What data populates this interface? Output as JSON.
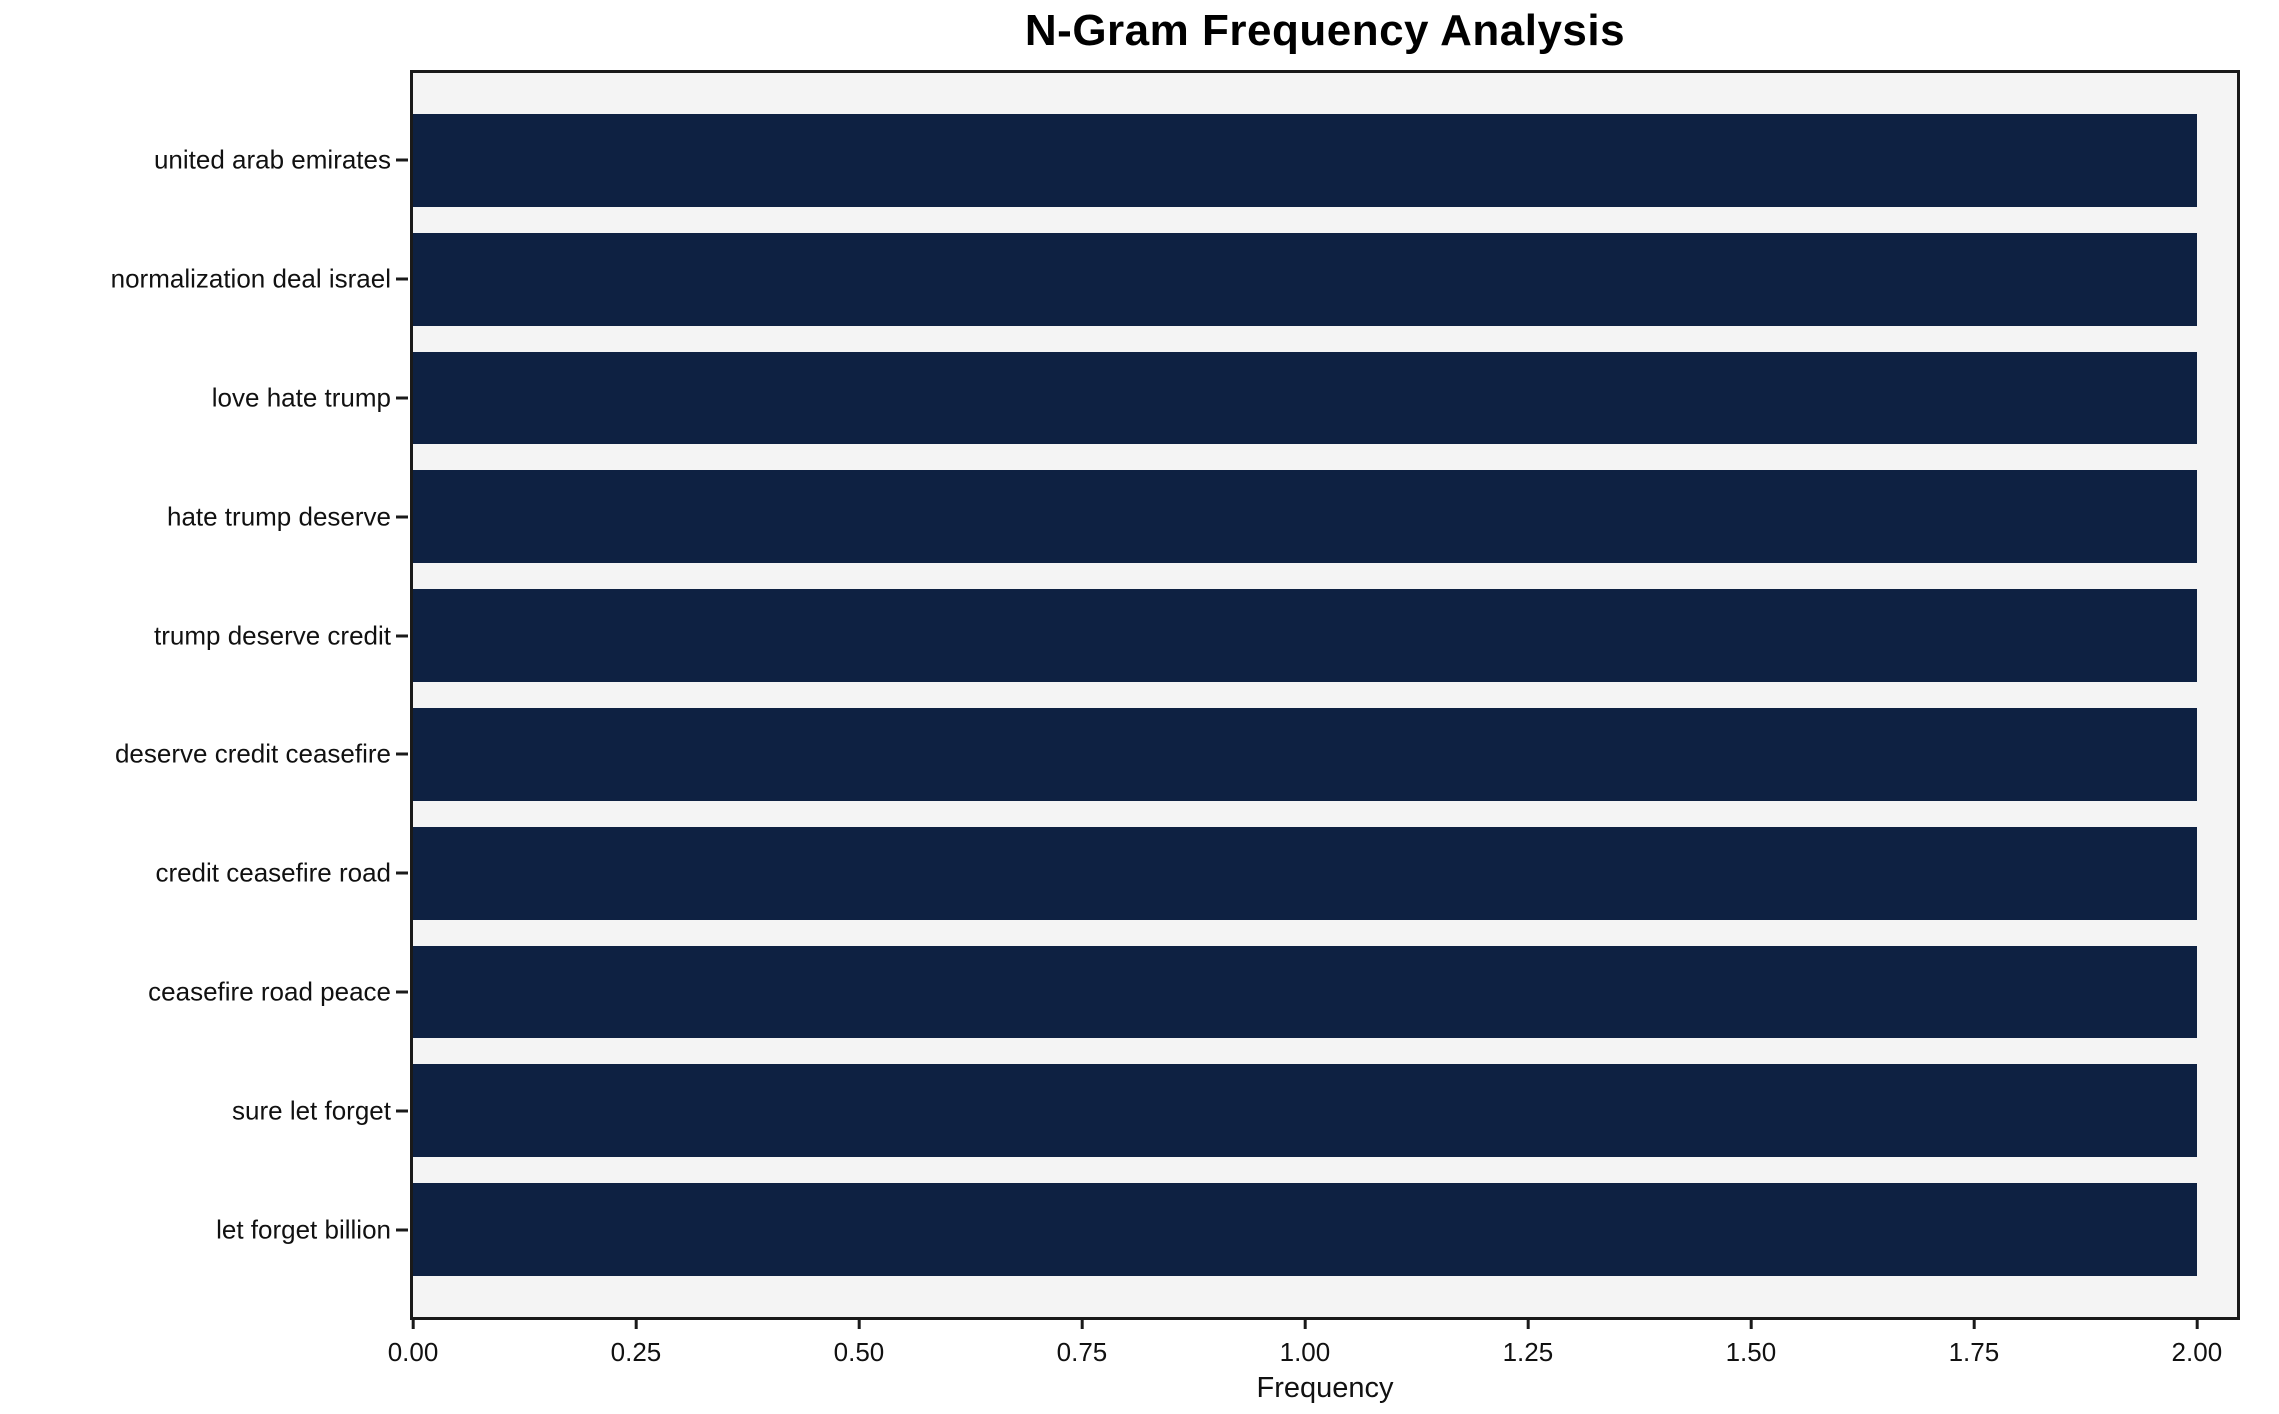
{
  "chart_data": {
    "type": "bar",
    "orientation": "horizontal",
    "title": "N-Gram Frequency Analysis",
    "xlabel": "Frequency",
    "ylabel": "",
    "categories": [
      "united arab emirates",
      "normalization deal israel",
      "love hate trump",
      "hate trump deserve",
      "trump deserve credit",
      "deserve credit ceasefire",
      "credit ceasefire road",
      "ceasefire road peace",
      "sure let forget",
      "let forget billion"
    ],
    "values": [
      2.0,
      2.0,
      2.0,
      2.0,
      2.0,
      2.0,
      2.0,
      2.0,
      2.0,
      2.0
    ],
    "xlim": [
      0,
      2.045
    ],
    "xticks": [
      0.0,
      0.25,
      0.5,
      0.75,
      1.0,
      1.25,
      1.5,
      1.75,
      2.0
    ],
    "xtick_labels": [
      "0.00",
      "0.25",
      "0.50",
      "0.75",
      "1.00",
      "1.25",
      "1.50",
      "1.75",
      "2.00"
    ],
    "bar_color": "#0e2142",
    "plot_bg": "#f4f4f4",
    "figure_bg": "#ffffff",
    "grid": false,
    "legend": null
  }
}
